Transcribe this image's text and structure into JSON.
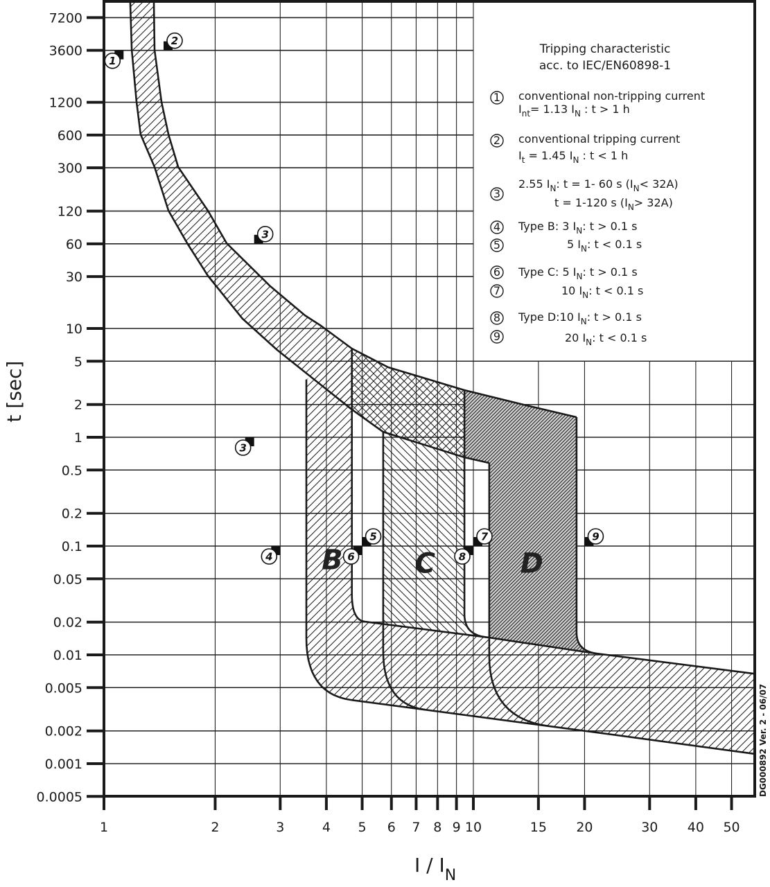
{
  "chart_data": {
    "type": "area",
    "title": "Tripping characteristic",
    "subtitle": "acc. to IEC/EN60898-1",
    "xlabel": {
      "main": "I / I",
      "sub": "N"
    },
    "ylabel": "t [sec]",
    "xscale": "log",
    "yscale": "log",
    "xlim": [
      1,
      57.8
    ],
    "ylim": [
      0.0005,
      10000
    ],
    "grid": true,
    "legend_position": "top-right",
    "x_ticks": [
      "1",
      "2",
      "3",
      "4",
      "5",
      "6",
      "7",
      "8",
      "9",
      "10",
      "15",
      "20",
      "30",
      "40",
      "50"
    ],
    "y_ticks": [
      "7200",
      "3600",
      "1200",
      "600",
      "300",
      "120",
      "60",
      "30",
      "10",
      "5",
      "2",
      "1",
      "0.5",
      "0.2",
      "0.1",
      "0.05",
      "0.02",
      "0.01",
      "0.005",
      "0.002",
      "0.001",
      "0.0005"
    ],
    "thermal_band": {
      "lower": [
        [
          1.178,
          10000
        ],
        [
          1.189,
          3637
        ],
        [
          1.225,
          1210
        ],
        [
          1.257,
          607
        ],
        [
          1.371,
          305
        ],
        [
          1.495,
          121
        ],
        [
          1.68,
          60.7
        ],
        [
          1.912,
          30.5
        ],
        [
          2.372,
          12.3
        ],
        [
          2.944,
          6.35
        ],
        [
          3.655,
          3.53
        ],
        [
          4.67,
          1.82
        ],
        [
          5.7,
          1.12
        ],
        [
          9.46,
          0.654
        ],
        [
          11.04,
          0.58
        ]
      ],
      "upper": [
        [
          1.365,
          10000
        ],
        [
          1.371,
          3637
        ],
        [
          1.431,
          1210
        ],
        [
          1.495,
          607
        ],
        [
          1.588,
          305
        ],
        [
          1.912,
          121
        ],
        [
          2.148,
          60.7
        ],
        [
          2.818,
          24.5
        ],
        [
          3.5,
          13.2
        ],
        [
          3.865,
          10.6
        ],
        [
          4.69,
          6.54
        ],
        [
          5.88,
          4.4
        ],
        [
          9.46,
          2.71
        ],
        [
          13.95,
          1.96
        ],
        [
          19.03,
          1.53
        ]
      ]
    },
    "instantaneous_band": {
      "lower": [
        [
          4.67,
          0.00385
        ],
        [
          20,
          0.002
        ],
        [
          57.8,
          0.00123
        ]
      ],
      "upper": [
        [
          5.08,
          0.0202
        ],
        [
          11.04,
          0.0144
        ],
        [
          20.8,
          0.01045
        ],
        [
          57.8,
          0.0067
        ]
      ]
    },
    "types": [
      {
        "name": "B",
        "outer": {
          "x": 3.53,
          "t_top": 3.4,
          "t_knee": 0.0144,
          "join_x": 4.67
        },
        "inner": {
          "x": 4.69,
          "t_top": 6.54,
          "t_knee": 0.036,
          "join_x": 5.08
        }
      },
      {
        "name": "C",
        "outer": {
          "x": 5.7,
          "t_top": 1.12,
          "t_knee": 0.0108,
          "join_x": 7.4
        },
        "inner": {
          "x": 9.46,
          "t_top": 2.71,
          "t_knee": 0.0234,
          "join_x": 10.8
        }
      },
      {
        "name": "D",
        "outer": {
          "x": 11.04,
          "t_top": 0.58,
          "t_knee": 0.0098,
          "join_x": 16.0
        },
        "inner": {
          "x": 19.03,
          "t_top": 1.53,
          "t_knee": 0.016,
          "join_x": 21.5
        }
      }
    ],
    "markers": [
      {
        "num": "1",
        "x": 1.13,
        "t": 3600,
        "side": "below-left"
      },
      {
        "num": "2",
        "x": 1.45,
        "t": 3600,
        "side": "above-right"
      },
      {
        "num": "3",
        "x": 2.55,
        "t": 60,
        "side": "above-right"
      },
      {
        "num": "3",
        "x": 2.55,
        "t": 1,
        "side": "below-left"
      },
      {
        "num": "4",
        "x": 3,
        "t": 0.1,
        "side": "below-left"
      },
      {
        "num": "5",
        "x": 5,
        "t": 0.1,
        "side": "above-right"
      },
      {
        "num": "6",
        "x": 5,
        "t": 0.1,
        "side": "below-left"
      },
      {
        "num": "7",
        "x": 10,
        "t": 0.1,
        "side": "above-right"
      },
      {
        "num": "8",
        "x": 10,
        "t": 0.1,
        "side": "below-left"
      },
      {
        "num": "9",
        "x": 20,
        "t": 0.1,
        "side": "above-right"
      }
    ],
    "legend": [
      {
        "num": "1",
        "lines": [
          [
            {
              "t": "conventional non-tripping current"
            }
          ],
          [
            {
              "t": "I"
            },
            {
              "s": "nt"
            },
            {
              "t": "= 1.13 I"
            },
            {
              "s": "N"
            },
            {
              "t": " : t > 1 h"
            }
          ]
        ]
      },
      {
        "num": "2",
        "lines": [
          [
            {
              "t": "conventional tripping current"
            }
          ],
          [
            {
              "t": "I"
            },
            {
              "s": "t"
            },
            {
              "t": " = 1.45 I"
            },
            {
              "s": "N"
            },
            {
              "t": " : t < 1 h"
            }
          ]
        ]
      },
      {
        "num": "3",
        "lines": [
          [
            {
              "t": "2.55 I"
            },
            {
              "s": "N"
            },
            {
              "t": ": t = 1- 60 s (I"
            },
            {
              "s": "N"
            },
            {
              "t": "< 32A)"
            }
          ],
          [
            {
              "t": "t = 1-120 s (I"
            },
            {
              "s": "N"
            },
            {
              "t": "> 32A)"
            }
          ]
        ]
      },
      {
        "num": "4",
        "lines": [
          [
            {
              "t": "Type B: 3 I"
            },
            {
              "s": "N"
            },
            {
              "t": ": t > 0.1 s"
            }
          ]
        ]
      },
      {
        "num": "5",
        "lines": [
          [
            {
              "t": "5 I"
            },
            {
              "s": "N"
            },
            {
              "t": ": t < 0.1 s"
            }
          ]
        ]
      },
      {
        "num": "6",
        "lines": [
          [
            {
              "t": "Type C: 5 I"
            },
            {
              "s": "N"
            },
            {
              "t": ": t > 0.1 s"
            }
          ]
        ]
      },
      {
        "num": "7",
        "lines": [
          [
            {
              "t": "10 I"
            },
            {
              "s": "N"
            },
            {
              "t": ": t < 0.1 s"
            }
          ]
        ]
      },
      {
        "num": "8",
        "lines": [
          [
            {
              "t": "Type D:10 I"
            },
            {
              "s": "N"
            },
            {
              "t": ": t > 0.1 s"
            }
          ]
        ]
      },
      {
        "num": "9",
        "lines": [
          [
            {
              "t": "20 I"
            },
            {
              "s": "N"
            },
            {
              "t": ": t < 0.1 s"
            }
          ]
        ]
      }
    ],
    "footnote": "DG000892 Ver. 2 - 06/07"
  },
  "colors": {
    "ink": "#1a1a1a",
    "grid": "#222222",
    "type_d_fill": "#bdbdbd",
    "background": "#ffffff"
  }
}
